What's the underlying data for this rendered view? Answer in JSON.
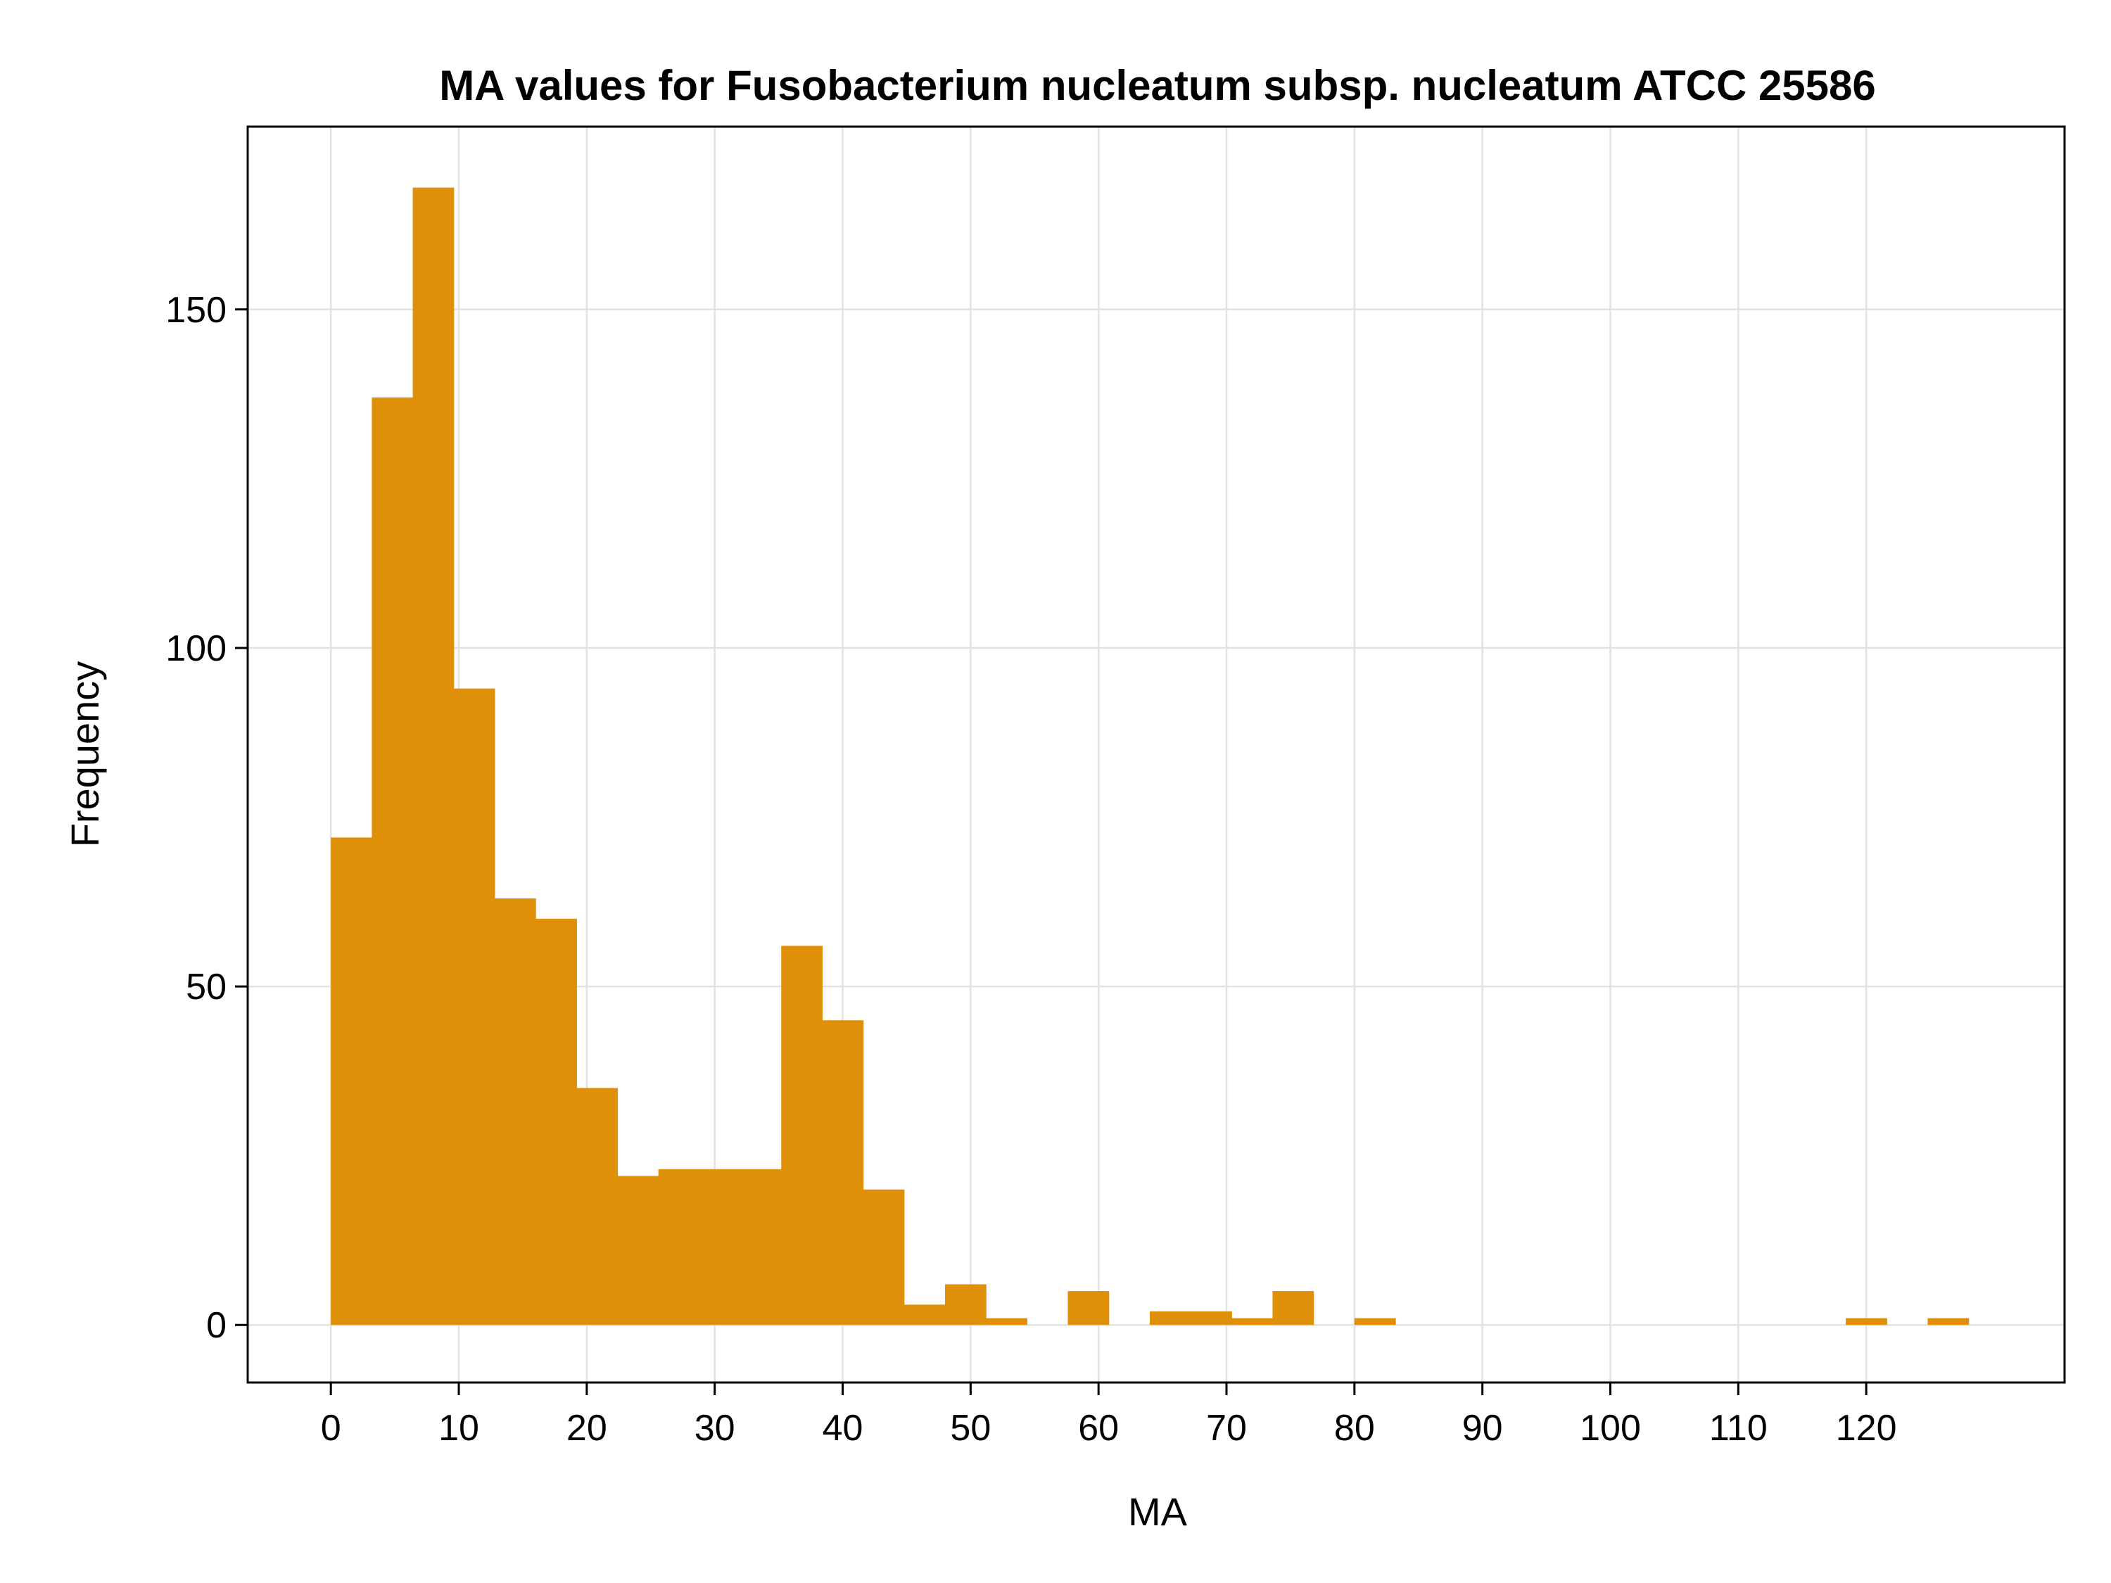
{
  "chart_data": {
    "type": "bar",
    "title": "MA values for Fusobacterium nucleatum subsp. nucleatum ATCC 25586",
    "xlabel": "MA",
    "ylabel": "Frequency",
    "bin_width": 3.2,
    "bins": [
      {
        "start": 0.0,
        "count": 72
      },
      {
        "start": 3.2,
        "count": 137
      },
      {
        "start": 6.4,
        "count": 168
      },
      {
        "start": 9.6,
        "count": 94
      },
      {
        "start": 12.8,
        "count": 63
      },
      {
        "start": 16.0,
        "count": 60
      },
      {
        "start": 19.2,
        "count": 35
      },
      {
        "start": 22.4,
        "count": 22
      },
      {
        "start": 25.6,
        "count": 23
      },
      {
        "start": 28.8,
        "count": 23
      },
      {
        "start": 32.0,
        "count": 23
      },
      {
        "start": 35.2,
        "count": 56
      },
      {
        "start": 38.4,
        "count": 45
      },
      {
        "start": 41.6,
        "count": 20
      },
      {
        "start": 44.8,
        "count": 3
      },
      {
        "start": 48.0,
        "count": 6
      },
      {
        "start": 51.2,
        "count": 1
      },
      {
        "start": 54.4,
        "count": 0
      },
      {
        "start": 57.6,
        "count": 5
      },
      {
        "start": 60.8,
        "count": 0
      },
      {
        "start": 64.0,
        "count": 2
      },
      {
        "start": 67.2,
        "count": 2
      },
      {
        "start": 70.4,
        "count": 1
      },
      {
        "start": 73.6,
        "count": 5
      },
      {
        "start": 76.8,
        "count": 0
      },
      {
        "start": 80.0,
        "count": 1
      },
      {
        "start": 83.2,
        "count": 0
      },
      {
        "start": 86.4,
        "count": 0
      },
      {
        "start": 89.6,
        "count": 0
      },
      {
        "start": 92.8,
        "count": 0
      },
      {
        "start": 96.0,
        "count": 0
      },
      {
        "start": 99.2,
        "count": 0
      },
      {
        "start": 102.4,
        "count": 0
      },
      {
        "start": 105.6,
        "count": 0
      },
      {
        "start": 108.8,
        "count": 0
      },
      {
        "start": 112.0,
        "count": 0
      },
      {
        "start": 115.2,
        "count": 0
      },
      {
        "start": 118.4,
        "count": 1
      },
      {
        "start": 121.6,
        "count": 0
      },
      {
        "start": 124.8,
        "count": 1
      }
    ],
    "xlim": [
      -6.5,
      135.5
    ],
    "ylim": [
      -8.5,
      177
    ],
    "xticks": [
      0,
      10,
      20,
      30,
      40,
      50,
      60,
      70,
      80,
      90,
      100,
      110,
      120
    ],
    "yticks": [
      0,
      50,
      100,
      150
    ],
    "grid": true,
    "bar_color": "#E09008",
    "grid_color": "#e2e2e2"
  }
}
